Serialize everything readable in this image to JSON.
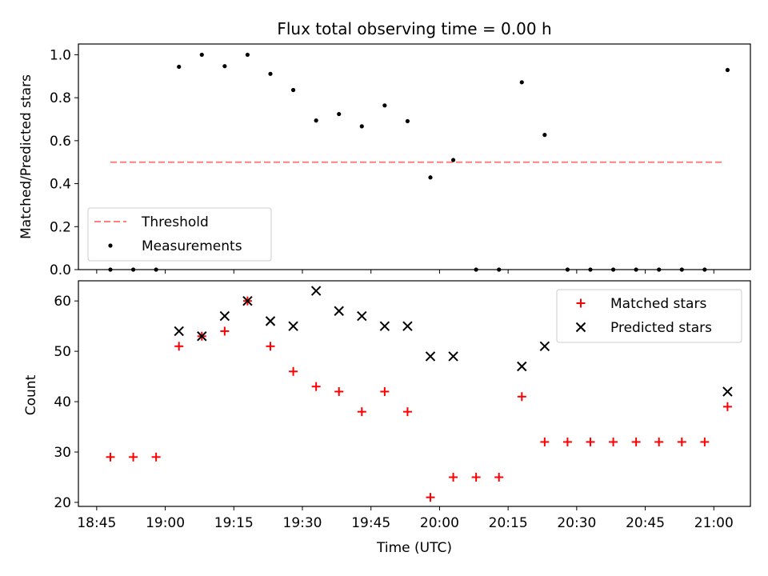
{
  "figure": {
    "title": "Flux total observing time = 0.00 h"
  },
  "chart_data": [
    {
      "type": "scatter",
      "ylabel": "Matched/Predicted stars",
      "xlabel": "",
      "ylim": [
        0,
        1.05
      ],
      "yticks": [
        0.0,
        0.2,
        0.4,
        0.6,
        0.8,
        1.0
      ],
      "ytick_labels": [
        "0.0",
        "0.2",
        "0.4",
        "0.6",
        "0.8",
        "1.0"
      ],
      "legend": {
        "placement": "lower-left",
        "threshold_label": "Threshold",
        "measurements_label": "Measurements"
      },
      "threshold": {
        "value": 0.5,
        "x_start": "18:48",
        "x_end": "21:02",
        "color": "#ff7f7f"
      },
      "measurements": {
        "color": "#000000",
        "x": [
          "18:48",
          "18:53",
          "18:58",
          "19:03",
          "19:08",
          "19:13",
          "19:18",
          "19:23",
          "19:28",
          "19:33",
          "19:38",
          "19:43",
          "19:48",
          "19:53",
          "19:58",
          "20:03",
          "20:08",
          "20:13",
          "20:18",
          "20:23",
          "20:28",
          "20:33",
          "20:38",
          "20:43",
          "20:48",
          "20:53",
          "20:58",
          "21:03"
        ],
        "y": [
          0.0,
          0.0,
          0.0,
          0.944,
          1.0,
          0.947,
          1.0,
          0.911,
          0.836,
          0.694,
          0.724,
          0.667,
          0.764,
          0.691,
          0.429,
          0.51,
          0.0,
          0.0,
          0.872,
          0.627,
          0.0,
          0.0,
          0.0,
          0.0,
          0.0,
          0.0,
          0.0,
          0.929
        ]
      }
    },
    {
      "type": "scatter",
      "ylabel": "Count",
      "xlabel": "Time (UTC)",
      "ylim": [
        19.2,
        64
      ],
      "yticks": [
        20,
        30,
        40,
        50,
        60
      ],
      "ytick_labels": [
        "20",
        "30",
        "40",
        "50",
        "60"
      ],
      "xlim": [
        "18:41",
        "21:08"
      ],
      "xticks": [
        "18:45",
        "19:00",
        "19:15",
        "19:30",
        "19:45",
        "20:00",
        "20:15",
        "20:30",
        "20:45",
        "21:00"
      ],
      "xtick_labels": [
        "18:45",
        "19:00",
        "19:15",
        "19:30",
        "19:45",
        "20:00",
        "20:15",
        "20:30",
        "20:45",
        "21:00"
      ],
      "legend": {
        "placement": "top-right"
      },
      "series": [
        {
          "name": "Matched stars",
          "marker": "plus",
          "color": "#ff0000",
          "x": [
            "18:48",
            "18:53",
            "18:58",
            "19:03",
            "19:08",
            "19:13",
            "19:18",
            "19:23",
            "19:28",
            "19:33",
            "19:38",
            "19:43",
            "19:48",
            "19:53",
            "19:58",
            "20:03",
            "20:08",
            "20:13",
            "20:18",
            "20:23",
            "20:28",
            "20:33",
            "20:38",
            "20:43",
            "20:48",
            "20:53",
            "20:58",
            "21:03"
          ],
          "y": [
            29,
            29,
            29,
            51,
            53,
            54,
            60,
            51,
            46,
            43,
            42,
            38,
            42,
            38,
            21,
            25,
            25,
            25,
            41,
            32,
            32,
            32,
            32,
            32,
            32,
            32,
            32,
            39
          ]
        },
        {
          "name": "Predicted stars",
          "marker": "x",
          "color": "#000000",
          "x": [
            "19:03",
            "19:08",
            "19:13",
            "19:18",
            "19:23",
            "19:28",
            "19:33",
            "19:38",
            "19:43",
            "19:48",
            "19:53",
            "19:58",
            "20:03",
            "20:18",
            "20:23",
            "21:03"
          ],
          "y": [
            54,
            53,
            57,
            60,
            56,
            55,
            62,
            58,
            57,
            55,
            55,
            49,
            49,
            47,
            51,
            42
          ]
        }
      ]
    }
  ]
}
